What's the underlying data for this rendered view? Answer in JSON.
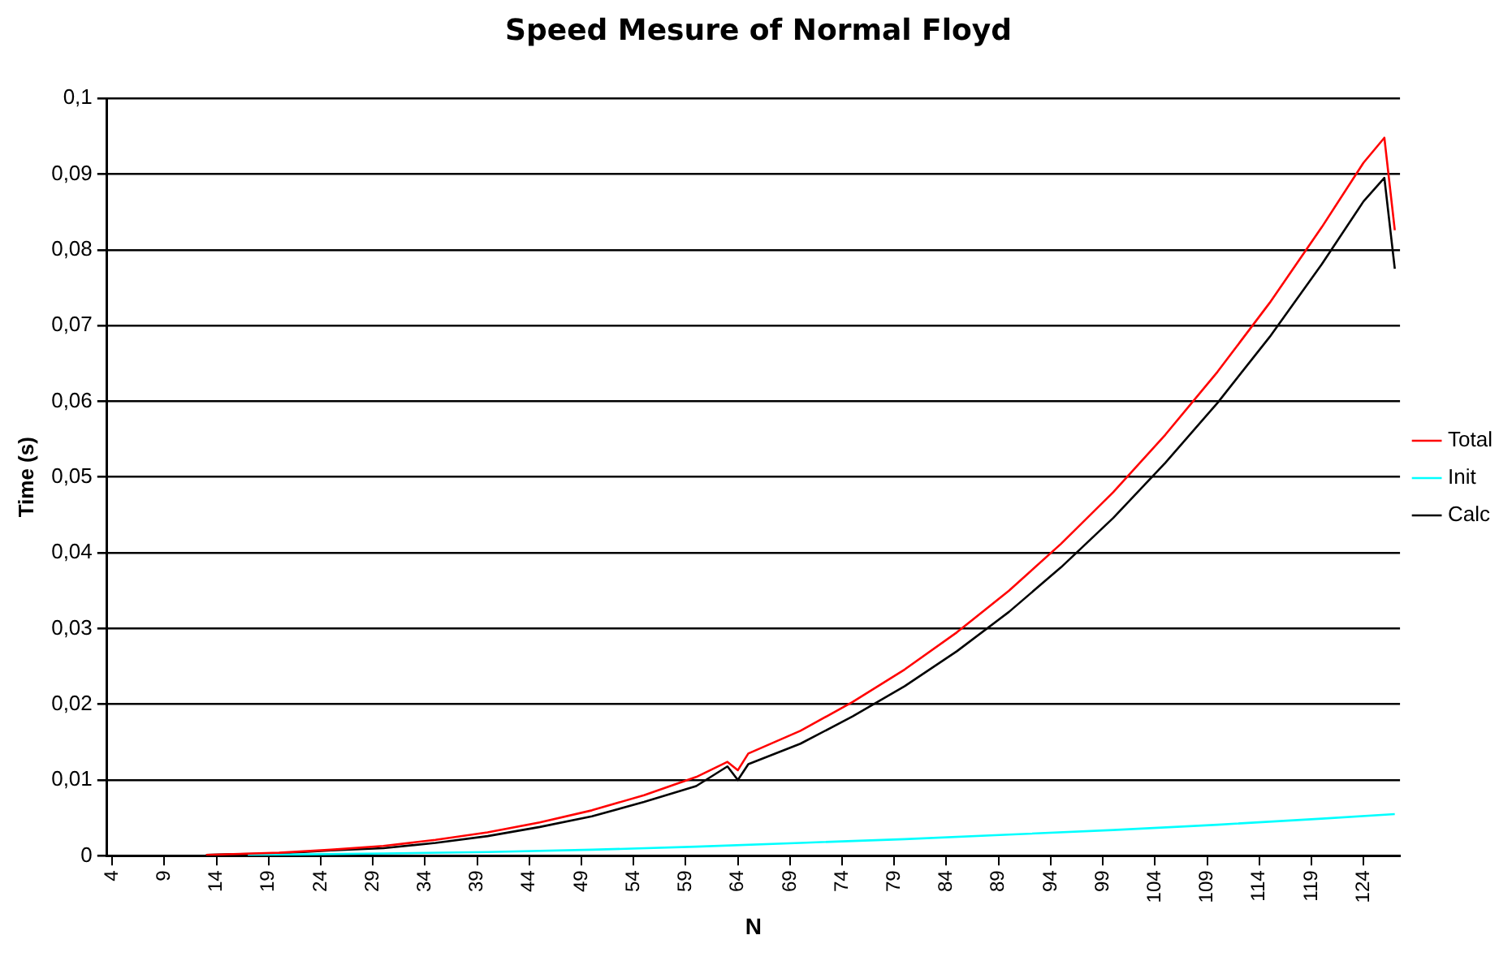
{
  "chart_data": {
    "type": "line",
    "title": "Speed Mesure of Normal Floyd",
    "xlabel": "N",
    "ylabel": "Time (s)",
    "xlim": [
      3.5,
      127.5
    ],
    "xticks": [
      4,
      9,
      14,
      19,
      24,
      29,
      34,
      39,
      44,
      49,
      54,
      59,
      64,
      69,
      74,
      79,
      84,
      89,
      94,
      99,
      104,
      109,
      114,
      119,
      124
    ],
    "ylim": [
      0,
      0.1
    ],
    "yticks": [
      {
        "value": 0,
        "label": "0"
      },
      {
        "value": 0.01,
        "label": "0,01"
      },
      {
        "value": 0.02,
        "label": "0,02"
      },
      {
        "value": 0.03,
        "label": "0,03"
      },
      {
        "value": 0.04,
        "label": "0,04"
      },
      {
        "value": 0.05,
        "label": "0,05"
      },
      {
        "value": 0.06,
        "label": "0,06"
      },
      {
        "value": 0.07,
        "label": "0,07"
      },
      {
        "value": 0.08,
        "label": "0,08"
      },
      {
        "value": 0.09,
        "label": "0,09"
      },
      {
        "value": 0.1,
        "label": "0,1"
      }
    ],
    "grid": "y",
    "legend": "right",
    "marker": "none",
    "line_style": "solid",
    "series": [
      {
        "name": "Total",
        "color": "#ff0000",
        "x": [
          13,
          15,
          20,
          25,
          30,
          35,
          40,
          45,
          50,
          55,
          60,
          63,
          64,
          65,
          70,
          75,
          80,
          85,
          90,
          95,
          100,
          105,
          110,
          115,
          120,
          124,
          126,
          127
        ],
        "values": [
          0.0001,
          0.0002,
          0.0004,
          0.0008,
          0.0013,
          0.0021,
          0.0031,
          0.0044,
          0.006,
          0.008,
          0.0104,
          0.0124,
          0.0113,
          0.0135,
          0.0165,
          0.0203,
          0.0246,
          0.0295,
          0.035,
          0.0412,
          0.048,
          0.0556,
          0.0639,
          0.073,
          0.083,
          0.0915,
          0.0948,
          0.0826
        ]
      },
      {
        "name": "Init",
        "color": "#00ffff",
        "x": [
          17,
          30,
          40,
          50,
          60,
          70,
          80,
          90,
          100,
          110,
          120,
          127
        ],
        "values": [
          0.0001,
          0.0003,
          0.0005,
          0.0008,
          0.0012,
          0.0017,
          0.0022,
          0.0028,
          0.0034,
          0.0041,
          0.0049,
          0.0055
        ]
      },
      {
        "name": "Calc",
        "color": "#000000",
        "x": [
          13,
          15,
          20,
          25,
          30,
          35,
          40,
          45,
          50,
          55,
          60,
          63,
          64,
          65,
          70,
          75,
          80,
          85,
          90,
          95,
          100,
          105,
          110,
          115,
          120,
          124,
          126,
          127
        ],
        "values": [
          0.0001,
          0.0002,
          0.0003,
          0.0007,
          0.001,
          0.0017,
          0.0026,
          0.0038,
          0.0052,
          0.0071,
          0.0092,
          0.0118,
          0.01,
          0.0121,
          0.0148,
          0.0184,
          0.0224,
          0.027,
          0.0322,
          0.0381,
          0.0446,
          0.0519,
          0.0598,
          0.0685,
          0.0781,
          0.0864,
          0.0895,
          0.0775
        ]
      }
    ]
  }
}
